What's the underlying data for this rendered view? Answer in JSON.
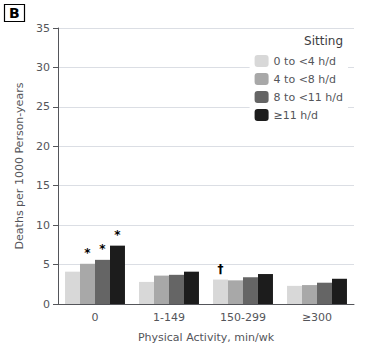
{
  "chart_data": {
    "type": "bar",
    "panel_label": "B",
    "xlabel": "Physical Activity, min/wk",
    "ylabel": "Deaths per 1000 Person-years",
    "categories": [
      "0",
      "1-149",
      "150-299",
      "≥300"
    ],
    "series": [
      {
        "name": "0 to <4 h/d",
        "color": "#d8d8d8",
        "values": [
          4.1,
          2.8,
          3.1,
          2.3
        ]
      },
      {
        "name": "4 to <8 h/d",
        "color": "#a8a8a8",
        "values": [
          5.1,
          3.6,
          3.0,
          2.4
        ]
      },
      {
        "name": "8 to <11 h/d",
        "color": "#656565",
        "values": [
          5.6,
          3.7,
          3.4,
          2.7
        ]
      },
      {
        "name": "≥11 h/d",
        "color": "#1c1c1c",
        "values": [
          7.4,
          4.1,
          3.8,
          3.2
        ]
      }
    ],
    "annotations": [
      {
        "text": "*",
        "category": "0",
        "series": "4 to <8 h/d"
      },
      {
        "text": "*",
        "category": "0",
        "series": "8 to <11 h/d"
      },
      {
        "text": "*",
        "category": "0",
        "series": "≥11 h/d"
      },
      {
        "text": "†",
        "category": "150-299",
        "series": "0 to <4 h/d"
      }
    ],
    "ylim": [
      0,
      35
    ],
    "yticks": [
      0,
      5,
      10,
      15,
      20,
      25,
      30,
      35
    ],
    "grid": true,
    "legend": "upper right",
    "legend_title": "Sitting"
  }
}
